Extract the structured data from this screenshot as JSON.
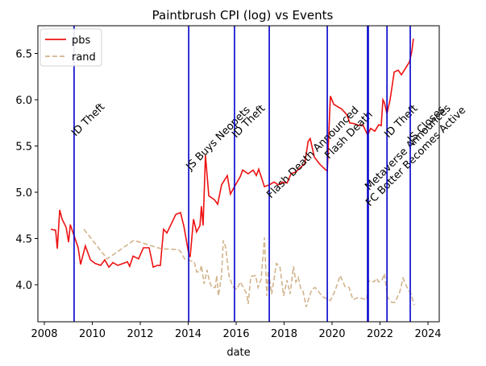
{
  "chart_data": {
    "type": "line",
    "title": "Paintbrush CPI (log) vs Events",
    "xlabel": "date",
    "xlim": [
      2007.73,
      2024.47
    ],
    "xticks": [
      2008,
      2010,
      2012,
      2014,
      2016,
      2018,
      2020,
      2022,
      2024
    ],
    "ylim": [
      3.6,
      6.8
    ],
    "yticks": [
      {
        "value": 4.0,
        "label": "4.0"
      },
      {
        "value": 4.5,
        "label": "4.5"
      },
      {
        "value": 5.0,
        "label": "5.0"
      },
      {
        "value": 5.5,
        "label": "5.5"
      },
      {
        "value": 6.0,
        "label": "6.0"
      },
      {
        "value": 6.5,
        "label": "6.5"
      }
    ],
    "grid": false,
    "legend": "upper left",
    "series": [
      {
        "name": "pbs",
        "color": "#ee1111",
        "style": "solid",
        "x": [
          2008.27,
          2008.47,
          2008.54,
          2008.64,
          2008.74,
          2008.91,
          2009.01,
          2009.08,
          2009.24,
          2009.41,
          2009.51,
          2009.71,
          2009.92,
          2010.12,
          2010.35,
          2010.52,
          2010.69,
          2010.86,
          2011.06,
          2011.39,
          2011.46,
          2011.56,
          2011.7,
          2011.93,
          2012.13,
          2012.37,
          2012.54,
          2012.71,
          2012.84,
          2012.97,
          2013.11,
          2013.28,
          2013.48,
          2013.68,
          2013.82,
          2014.02,
          2014.08,
          2014.22,
          2014.35,
          2014.49,
          2014.55,
          2014.62,
          2014.72,
          2014.86,
          2015.09,
          2015.23,
          2015.39,
          2015.63,
          2015.76,
          2015.93,
          2016.17,
          2016.27,
          2016.5,
          2016.71,
          2016.84,
          2016.94,
          2017.18,
          2017.38,
          2017.58,
          2017.75,
          2017.92,
          2018.12,
          2018.29,
          2018.49,
          2018.69,
          2018.86,
          2019.0,
          2019.09,
          2019.26,
          2019.5,
          2019.7,
          2019.8,
          2019.93,
          2020.07,
          2020.4,
          2020.61,
          2020.74,
          2020.94,
          2021.14,
          2021.28,
          2021.48,
          2021.61,
          2021.78,
          2021.95,
          2022.05,
          2022.12,
          2022.18,
          2022.29,
          2022.42,
          2022.59,
          2022.76,
          2022.89,
          2023.06,
          2023.23,
          2023.33,
          2023.39
        ],
        "values": [
          4.6,
          4.59,
          4.39,
          4.81,
          4.71,
          4.62,
          4.46,
          4.65,
          4.53,
          4.4,
          4.22,
          4.42,
          4.27,
          4.23,
          4.21,
          4.27,
          4.19,
          4.24,
          4.21,
          4.24,
          4.25,
          4.2,
          4.31,
          4.28,
          4.4,
          4.4,
          4.19,
          4.21,
          4.21,
          4.6,
          4.56,
          4.65,
          4.76,
          4.78,
          4.63,
          4.34,
          4.3,
          4.71,
          4.57,
          4.64,
          4.85,
          4.64,
          5.4,
          4.96,
          4.92,
          4.87,
          5.08,
          5.18,
          4.98,
          5.06,
          5.17,
          5.24,
          5.2,
          5.24,
          5.18,
          5.25,
          5.06,
          5.08,
          5.11,
          5.08,
          5.11,
          5.1,
          5.2,
          5.22,
          5.27,
          5.31,
          5.55,
          5.58,
          5.38,
          5.3,
          5.25,
          5.23,
          6.04,
          5.95,
          5.9,
          5.84,
          5.75,
          5.74,
          5.72,
          5.73,
          5.62,
          5.69,
          5.66,
          5.73,
          5.72,
          6.0,
          5.97,
          5.85,
          6.0,
          6.3,
          6.32,
          6.27,
          6.34,
          6.41,
          6.53,
          6.66
        ]
      },
      {
        "name": "rand",
        "color": "#d2b48c",
        "style": "dashed",
        "x": [
          2009.65,
          2010.62,
          2011.73,
          2012.87,
          2013.58,
          2013.68,
          2013.85,
          2014.08,
          2014.25,
          2014.35,
          2014.49,
          2014.55,
          2014.66,
          2014.79,
          2014.89,
          2014.99,
          2015.13,
          2015.19,
          2015.26,
          2015.39,
          2015.46,
          2015.56,
          2015.7,
          2015.86,
          2016.03,
          2016.17,
          2016.3,
          2016.44,
          2016.5,
          2016.61,
          2016.81,
          2016.91,
          2017.04,
          2017.18,
          2017.28,
          2017.34,
          2017.48,
          2017.68,
          2017.82,
          2017.98,
          2018.12,
          2018.25,
          2018.39,
          2018.49,
          2018.59,
          2018.69,
          2018.79,
          2018.92,
          2019.06,
          2019.16,
          2019.29,
          2019.43,
          2019.6,
          2019.93,
          2020.13,
          2020.34,
          2020.54,
          2020.71,
          2020.87,
          2021.08,
          2021.28,
          2021.45,
          2021.51,
          2021.61,
          2021.75,
          2021.85,
          2021.95,
          2022.08,
          2022.18,
          2022.32,
          2022.49,
          2022.62,
          2022.82,
          2022.96,
          2023.13,
          2023.29,
          2023.43
        ],
        "values": [
          4.6,
          4.28,
          4.48,
          4.39,
          4.38,
          4.36,
          4.28,
          4.26,
          4.25,
          4.14,
          4.14,
          4.21,
          4.01,
          4.16,
          4.03,
          3.97,
          3.97,
          4.1,
          3.88,
          4.1,
          4.48,
          4.41,
          4.1,
          3.98,
          3.95,
          4.03,
          3.97,
          3.9,
          3.79,
          4.09,
          4.1,
          3.97,
          4.06,
          4.51,
          3.88,
          4.15,
          3.9,
          4.23,
          4.2,
          3.88,
          4.05,
          3.9,
          4.2,
          4.03,
          4.08,
          3.96,
          3.93,
          3.76,
          3.88,
          3.95,
          3.97,
          3.93,
          3.87,
          3.83,
          3.94,
          4.1,
          3.98,
          3.97,
          3.84,
          3.86,
          3.85,
          3.84,
          4.03,
          4.05,
          4.03,
          4.07,
          4.03,
          4.05,
          4.12,
          3.86,
          3.81,
          3.81,
          3.92,
          4.07,
          3.97,
          3.9,
          3.78
        ]
      }
    ],
    "event_color": "#0000cc",
    "events": [
      {
        "x": 2009.24,
        "label": "ID Theft"
      },
      {
        "x": 2014.02,
        "label": "JS Buys Neopets"
      },
      {
        "x": 2015.93,
        "label": "ID Theft"
      },
      {
        "x": 2017.38,
        "label": "Flash Death Announced"
      },
      {
        "x": 2019.8,
        "label": "Flash Death"
      },
      {
        "x": 2021.48,
        "label": "Metaverse Announces"
      },
      {
        "x": 2021.51,
        "label": "FC Botter Becomes Active"
      },
      {
        "x": 2022.29,
        "label": "ID Theft"
      },
      {
        "x": 2023.26,
        "label": "JS Closes"
      }
    ]
  }
}
